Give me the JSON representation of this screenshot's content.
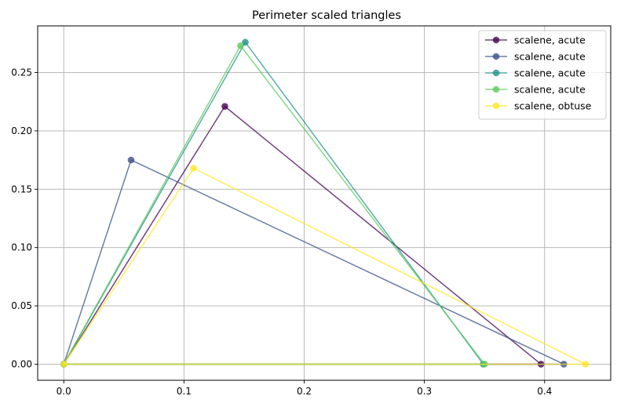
{
  "chart_data": {
    "type": "line",
    "title": "Perimeter scaled triangles",
    "xlabel": "",
    "ylabel": "",
    "xlim": [
      -0.0217,
      0.455
    ],
    "ylim": [
      -0.0138,
      0.29
    ],
    "x_ticks": [
      0.0,
      0.1,
      0.2,
      0.3,
      0.4
    ],
    "x_tick_labels": [
      "0.0",
      "0.1",
      "0.2",
      "0.3",
      "0.4"
    ],
    "y_ticks": [
      0.0,
      0.05,
      0.1,
      0.15,
      0.2,
      0.25
    ],
    "y_tick_labels": [
      "0.00",
      "0.05",
      "0.10",
      "0.15",
      "0.20",
      "0.25"
    ],
    "grid": true,
    "legend_position": "top-right",
    "series": [
      {
        "name": "scalene, acute",
        "color": "#440154",
        "x": [
          0.0,
          0.397,
          0.134,
          0.0
        ],
        "y": [
          0.0,
          0.0,
          0.221,
          0.0
        ]
      },
      {
        "name": "scalene, acute",
        "color": "#3b528b",
        "x": [
          0.0,
          0.416,
          0.056,
          0.0
        ],
        "y": [
          0.0,
          0.0,
          0.175,
          0.0
        ]
      },
      {
        "name": "scalene, acute",
        "color": "#21918c",
        "x": [
          0.0,
          0.349,
          0.151,
          0.0
        ],
        "y": [
          0.0,
          0.0,
          0.276,
          0.0
        ]
      },
      {
        "name": "scalene, acute",
        "color": "#5ec962",
        "x": [
          0.0,
          0.35,
          0.147,
          0.0
        ],
        "y": [
          0.0,
          0.0,
          0.273,
          0.0
        ]
      },
      {
        "name": "scalene, obtuse",
        "color": "#fde725",
        "x": [
          0.0,
          0.434,
          0.108,
          0.0
        ],
        "y": [
          0.0,
          0.0,
          0.168,
          0.0
        ]
      }
    ]
  }
}
